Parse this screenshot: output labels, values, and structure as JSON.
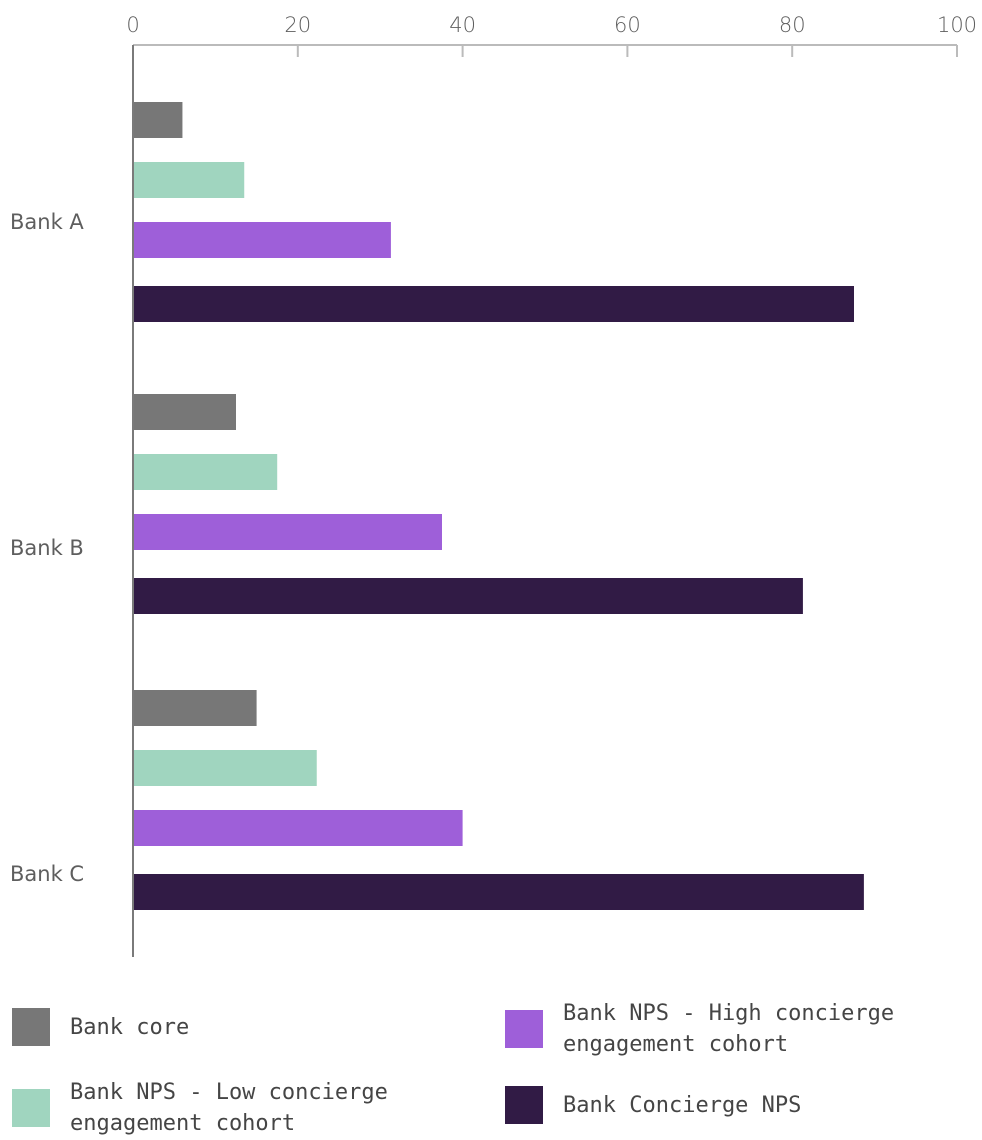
{
  "chart_data": {
    "type": "bar",
    "orientation": "horizontal",
    "title": "",
    "xlabel": "",
    "ylabel": "",
    "xlim": [
      0,
      100
    ],
    "x_ticks": [
      "0",
      "20",
      "40",
      "60",
      "80",
      "100"
    ],
    "x_axis_position": "top",
    "grid": false,
    "categories": [
      "Bank A",
      "Bank B",
      "Bank C"
    ],
    "series": [
      {
        "name": "Bank core",
        "color": "#777777",
        "values": [
          6,
          12.5,
          15
        ]
      },
      {
        "name": "Bank NPS - Low concierge engagement cohort",
        "color": "#a0d5bf",
        "values": [
          13.5,
          17.5,
          22.3
        ]
      },
      {
        "name": "Bank NPS - High concierge engagement cohort",
        "color": "#9e5fd9",
        "values": [
          31.3,
          37.5,
          40
        ]
      },
      {
        "name": "Bank Concierge NPS",
        "color": "#311b45",
        "values": [
          87.5,
          81.3,
          88.7
        ]
      }
    ],
    "legend_placement": "bottom"
  },
  "legend": {
    "items": [
      {
        "label": "Bank core",
        "color": "#777777"
      },
      {
        "label": "Bank NPS - Low concierge engagement cohort",
        "color": "#a0d5bf"
      },
      {
        "label": "Bank NPS - High concierge engagement cohort",
        "color": "#9e5fd9"
      },
      {
        "label": "Bank Concierge NPS",
        "color": "#311b45"
      }
    ]
  }
}
